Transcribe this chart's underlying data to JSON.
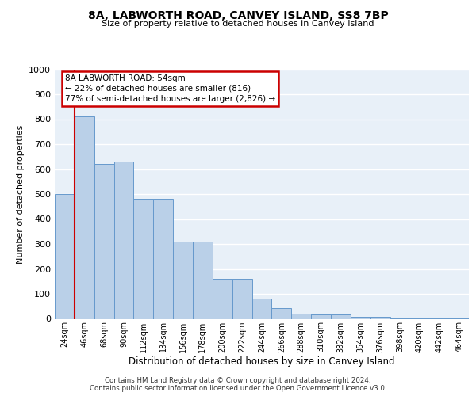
{
  "title": "8A, LABWORTH ROAD, CANVEY ISLAND, SS8 7BP",
  "subtitle": "Size of property relative to detached houses in Canvey Island",
  "xlabel": "Distribution of detached houses by size in Canvey Island",
  "ylabel": "Number of detached properties",
  "categories": [
    "24sqm",
    "46sqm",
    "68sqm",
    "90sqm",
    "112sqm",
    "134sqm",
    "156sqm",
    "178sqm",
    "200sqm",
    "222sqm",
    "244sqm",
    "266sqm",
    "288sqm",
    "310sqm",
    "332sqm",
    "354sqm",
    "376sqm",
    "398sqm",
    "420sqm",
    "442sqm",
    "464sqm"
  ],
  "values": [
    500,
    810,
    620,
    630,
    480,
    480,
    310,
    310,
    160,
    160,
    82,
    42,
    20,
    18,
    18,
    8,
    8,
    3,
    3,
    1,
    1
  ],
  "bar_color": "#bad0e8",
  "bar_edge_color": "#6699cc",
  "background_color": "#e8f0f8",
  "grid_color": "#ffffff",
  "annotation_text": "8A LABWORTH ROAD: 54sqm\n← 22% of detached houses are smaller (816)\n77% of semi-detached houses are larger (2,826) →",
  "annotation_box_edgecolor": "#cc0000",
  "red_line_x": 1.0,
  "ylim_max": 1000,
  "footer_line1": "Contains HM Land Registry data © Crown copyright and database right 2024.",
  "footer_line2": "Contains public sector information licensed under the Open Government Licence v3.0."
}
